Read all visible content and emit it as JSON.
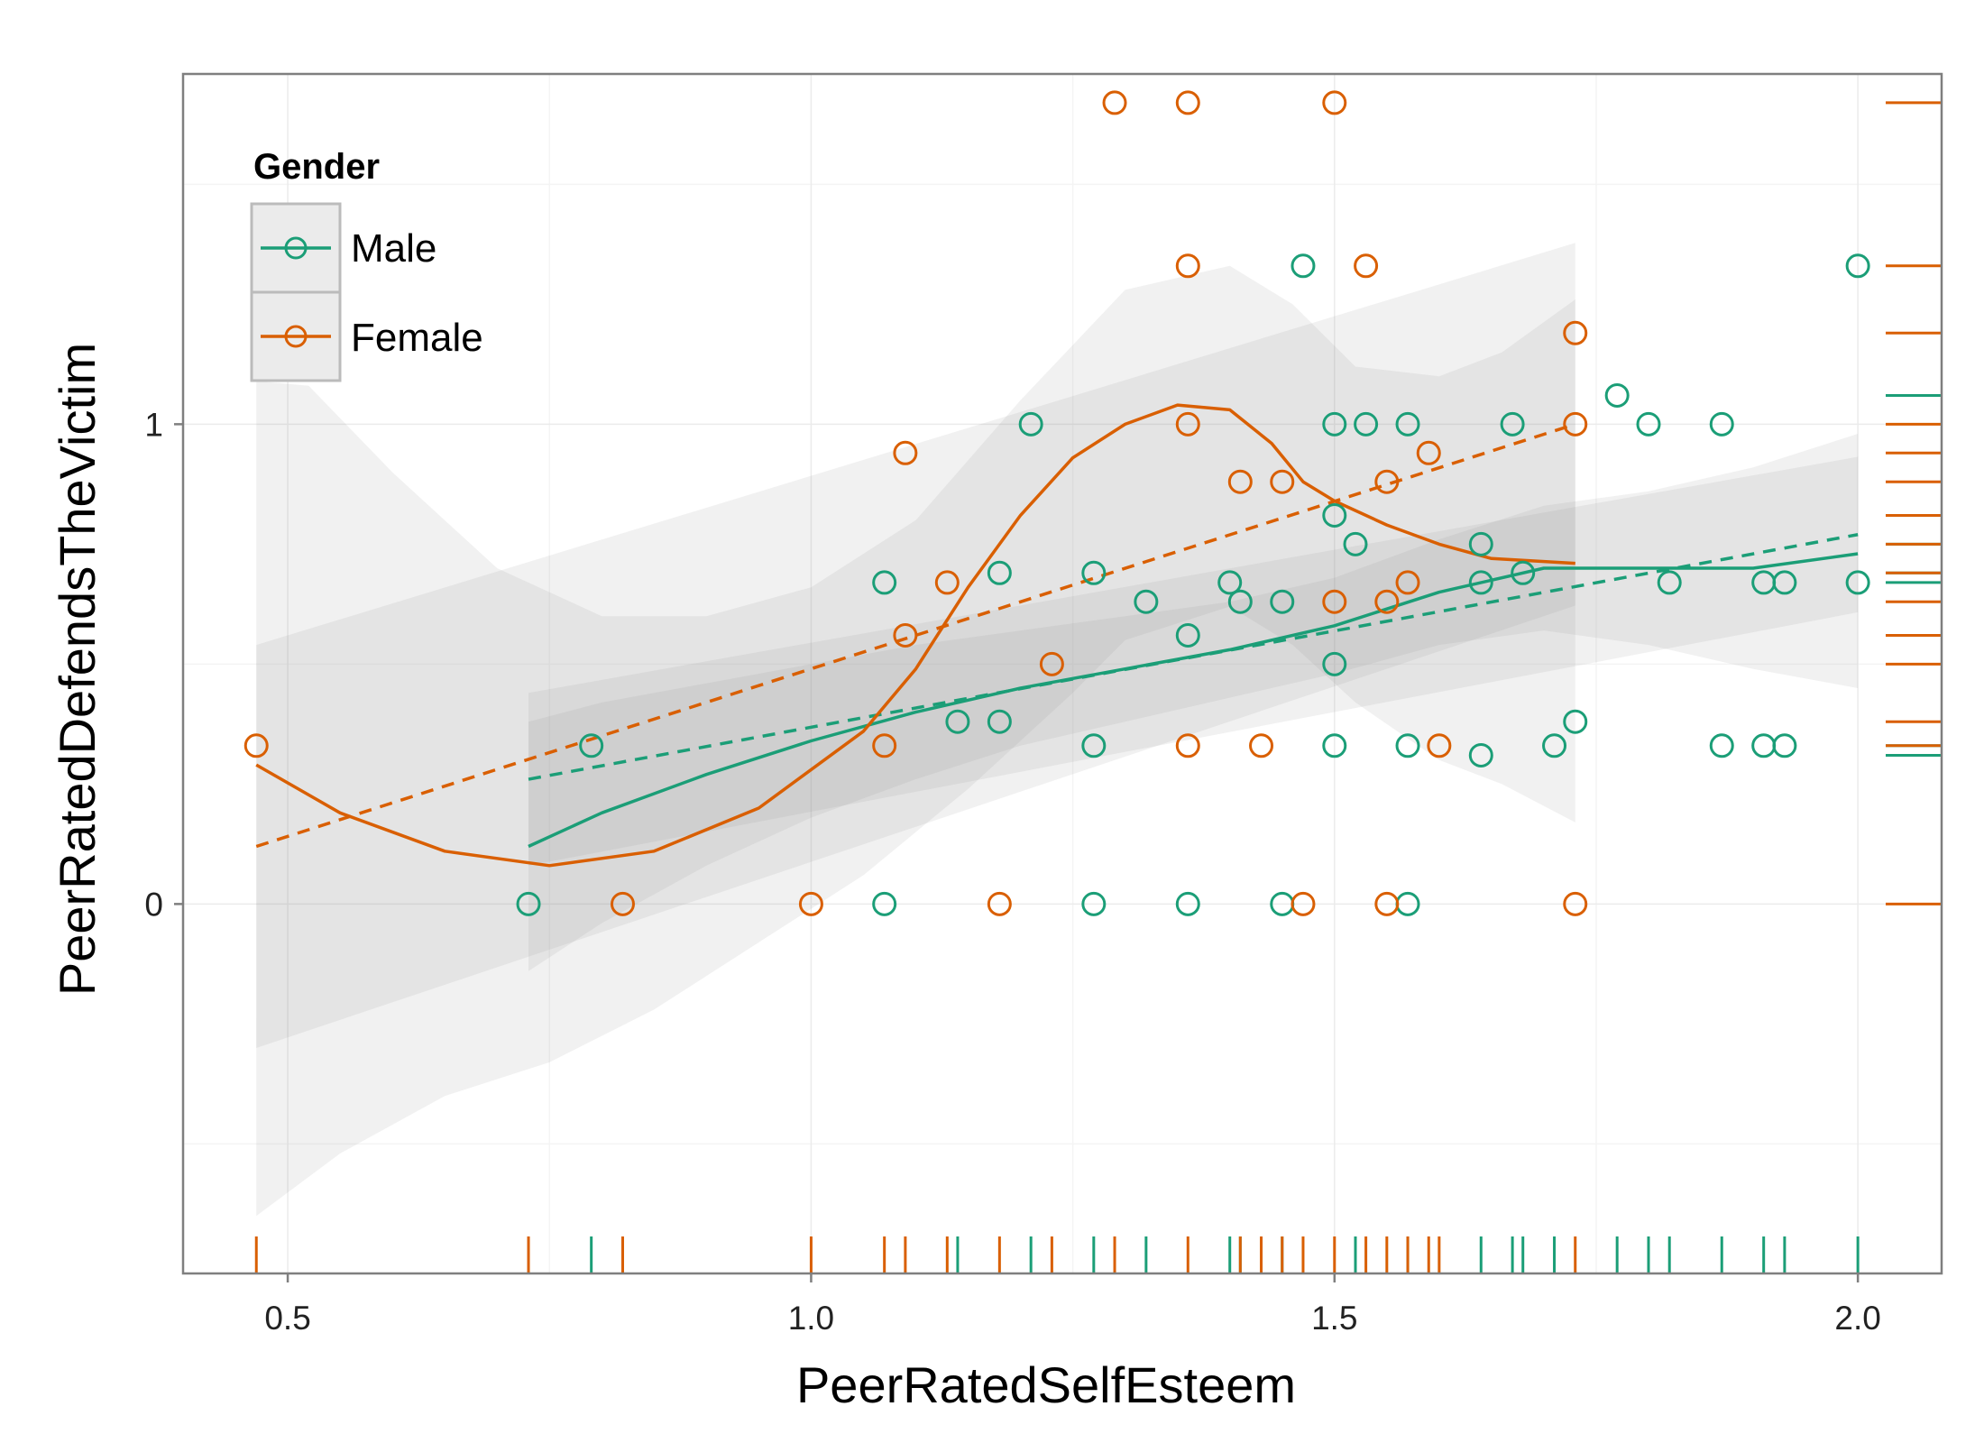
{
  "chart_data": {
    "type": "scatter",
    "xlabel": "PeerRatedSelfEsteem",
    "ylabel": "PeerRatedDefendsTheVictim",
    "xlim": [
      0.4,
      2.08
    ],
    "ylim": [
      -0.77,
      1.73
    ],
    "x_ticks": [
      0.5,
      1.0,
      1.5,
      2.0
    ],
    "x_tick_labels": [
      "0.5",
      "1.0",
      "1.5",
      "2.0"
    ],
    "y_ticks": [
      0,
      1
    ],
    "y_tick_labels": [
      "0",
      "1"
    ],
    "grid": true,
    "background": "#ffffff",
    "legend": {
      "title": "Gender",
      "position": "top-left"
    },
    "series": [
      {
        "name": "Male",
        "color": "#1b9e77",
        "points": [
          [
            0.73,
            0.0
          ],
          [
            0.79,
            0.33
          ],
          [
            1.07,
            0.67
          ],
          [
            1.07,
            0.0
          ],
          [
            1.14,
            0.38
          ],
          [
            1.18,
            0.69
          ],
          [
            1.18,
            0.38
          ],
          [
            1.21,
            1.0
          ],
          [
            1.27,
            0.69
          ],
          [
            1.27,
            0.33
          ],
          [
            1.27,
            0.0
          ],
          [
            1.32,
            0.63
          ],
          [
            1.36,
            0.56
          ],
          [
            1.36,
            0.0
          ],
          [
            1.4,
            0.67
          ],
          [
            1.41,
            0.63
          ],
          [
            1.45,
            0.63
          ],
          [
            1.45,
            0.0
          ],
          [
            1.47,
            1.33
          ],
          [
            1.5,
            1.0
          ],
          [
            1.5,
            0.81
          ],
          [
            1.5,
            0.5
          ],
          [
            1.5,
            0.33
          ],
          [
            1.52,
            0.75
          ],
          [
            1.53,
            1.0
          ],
          [
            1.57,
            1.0
          ],
          [
            1.57,
            0.33
          ],
          [
            1.57,
            0.0
          ],
          [
            1.64,
            0.75
          ],
          [
            1.64,
            0.67
          ],
          [
            1.64,
            0.31
          ],
          [
            1.67,
            1.0
          ],
          [
            1.68,
            0.69
          ],
          [
            1.71,
            0.33
          ],
          [
            1.73,
            0.38
          ],
          [
            1.77,
            1.06
          ],
          [
            1.8,
            1.0
          ],
          [
            1.82,
            0.67
          ],
          [
            1.87,
            1.0
          ],
          [
            1.87,
            0.33
          ],
          [
            1.91,
            0.67
          ],
          [
            1.91,
            0.33
          ],
          [
            1.93,
            0.67
          ],
          [
            1.93,
            0.33
          ],
          [
            2.0,
            1.33
          ],
          [
            2.0,
            0.67
          ]
        ],
        "smooth": [
          [
            0.73,
            0.12
          ],
          [
            0.8,
            0.19
          ],
          [
            0.9,
            0.27
          ],
          [
            1.0,
            0.34
          ],
          [
            1.1,
            0.4
          ],
          [
            1.2,
            0.45
          ],
          [
            1.3,
            0.49
          ],
          [
            1.4,
            0.53
          ],
          [
            1.5,
            0.58
          ],
          [
            1.6,
            0.65
          ],
          [
            1.7,
            0.7
          ],
          [
            1.8,
            0.7
          ],
          [
            1.9,
            0.7
          ],
          [
            2.0,
            0.73
          ]
        ],
        "linear_fit": [
          [
            0.73,
            0.26
          ],
          [
            2.0,
            0.77
          ]
        ],
        "band_upper": [
          [
            0.73,
            0.38
          ],
          [
            0.8,
            0.42
          ],
          [
            0.9,
            0.46
          ],
          [
            1.0,
            0.5
          ],
          [
            1.1,
            0.54
          ],
          [
            1.2,
            0.57
          ],
          [
            1.3,
            0.6
          ],
          [
            1.4,
            0.63
          ],
          [
            1.5,
            0.68
          ],
          [
            1.6,
            0.76
          ],
          [
            1.7,
            0.83
          ],
          [
            1.8,
            0.86
          ],
          [
            1.9,
            0.91
          ],
          [
            2.0,
            0.98
          ]
        ],
        "band_lower": [
          [
            0.73,
            -0.14
          ],
          [
            0.8,
            -0.04
          ],
          [
            0.9,
            0.08
          ],
          [
            1.0,
            0.18
          ],
          [
            1.1,
            0.26
          ],
          [
            1.2,
            0.33
          ],
          [
            1.3,
            0.38
          ],
          [
            1.4,
            0.43
          ],
          [
            1.5,
            0.48
          ],
          [
            1.6,
            0.54
          ],
          [
            1.7,
            0.57
          ],
          [
            1.8,
            0.54
          ],
          [
            1.9,
            0.49
          ],
          [
            2.0,
            0.45
          ]
        ],
        "rug_x": [
          0.79,
          1.14,
          1.21,
          1.27,
          1.32,
          1.4,
          1.41,
          1.45,
          1.52,
          1.57,
          1.64,
          1.67,
          1.68,
          1.71,
          1.77,
          1.8,
          1.82,
          1.87,
          1.91,
          1.93,
          2.0
        ],
        "rug_y": [
          1.06,
          0.81,
          0.75,
          0.69,
          0.67,
          0.33,
          0.31
        ]
      },
      {
        "name": "Female",
        "color": "#d95f02",
        "points": [
          [
            0.47,
            0.33
          ],
          [
            0.82,
            0.0
          ],
          [
            1.0,
            0.0
          ],
          [
            1.07,
            0.33
          ],
          [
            1.09,
            0.94
          ],
          [
            1.09,
            0.56
          ],
          [
            1.13,
            0.67
          ],
          [
            1.18,
            0.0
          ],
          [
            1.23,
            0.5
          ],
          [
            1.29,
            1.67
          ],
          [
            1.36,
            1.67
          ],
          [
            1.36,
            1.33
          ],
          [
            1.36,
            1.0
          ],
          [
            1.36,
            0.33
          ],
          [
            1.41,
            0.88
          ],
          [
            1.43,
            0.33
          ],
          [
            1.45,
            0.88
          ],
          [
            1.47,
            0.0
          ],
          [
            1.5,
            1.67
          ],
          [
            1.5,
            0.63
          ],
          [
            1.53,
            1.33
          ],
          [
            1.55,
            0.88
          ],
          [
            1.55,
            0.63
          ],
          [
            1.55,
            0.0
          ],
          [
            1.57,
            0.67
          ],
          [
            1.59,
            0.94
          ],
          [
            1.6,
            0.33
          ],
          [
            1.73,
            1.19
          ],
          [
            1.73,
            1.0
          ],
          [
            1.73,
            0.0
          ]
        ],
        "smooth": [
          [
            0.47,
            0.29
          ],
          [
            0.55,
            0.19
          ],
          [
            0.65,
            0.11
          ],
          [
            0.75,
            0.08
          ],
          [
            0.85,
            0.11
          ],
          [
            0.95,
            0.2
          ],
          [
            1.05,
            0.36
          ],
          [
            1.1,
            0.49
          ],
          [
            1.15,
            0.66
          ],
          [
            1.2,
            0.81
          ],
          [
            1.25,
            0.93
          ],
          [
            1.3,
            1.0
          ],
          [
            1.35,
            1.04
          ],
          [
            1.4,
            1.03
          ],
          [
            1.44,
            0.96
          ],
          [
            1.47,
            0.88
          ],
          [
            1.5,
            0.84
          ],
          [
            1.55,
            0.79
          ],
          [
            1.6,
            0.75
          ],
          [
            1.65,
            0.72
          ],
          [
            1.73,
            0.71
          ]
        ],
        "linear_fit": [
          [
            0.47,
            0.12
          ],
          [
            1.73,
            1.0
          ]
        ],
        "band_upper": [
          [
            0.47,
            1.09
          ],
          [
            0.52,
            1.08
          ],
          [
            0.6,
            0.9
          ],
          [
            0.7,
            0.7
          ],
          [
            0.8,
            0.6
          ],
          [
            0.9,
            0.6
          ],
          [
            1.0,
            0.66
          ],
          [
            1.1,
            0.8
          ],
          [
            1.2,
            1.05
          ],
          [
            1.3,
            1.28
          ],
          [
            1.4,
            1.33
          ],
          [
            1.46,
            1.25
          ],
          [
            1.52,
            1.12
          ],
          [
            1.6,
            1.1
          ],
          [
            1.66,
            1.15
          ],
          [
            1.73,
            1.26
          ]
        ],
        "band_lower": [
          [
            0.47,
            -0.65
          ],
          [
            0.55,
            -0.52
          ],
          [
            0.65,
            -0.4
          ],
          [
            0.75,
            -0.33
          ],
          [
            0.85,
            -0.22
          ],
          [
            0.95,
            -0.08
          ],
          [
            1.05,
            0.06
          ],
          [
            1.15,
            0.24
          ],
          [
            1.25,
            0.44
          ],
          [
            1.3,
            0.55
          ],
          [
            1.4,
            0.62
          ],
          [
            1.46,
            0.54
          ],
          [
            1.52,
            0.42
          ],
          [
            1.6,
            0.3
          ],
          [
            1.66,
            0.25
          ],
          [
            1.73,
            0.17
          ]
        ],
        "rug_x": [
          0.47,
          0.73,
          0.82,
          1.0,
          1.07,
          1.09,
          1.13,
          1.18,
          1.23,
          1.29,
          1.36,
          1.41,
          1.43,
          1.45,
          1.47,
          1.5,
          1.53,
          1.55,
          1.57,
          1.59,
          1.6,
          1.73
        ],
        "rug_y": [
          1.67,
          1.33,
          1.19,
          1.0,
          0.94,
          0.88,
          0.81,
          0.75,
          0.69,
          0.63,
          0.56,
          0.5,
          0.38,
          0.33,
          0.0
        ]
      }
    ]
  }
}
